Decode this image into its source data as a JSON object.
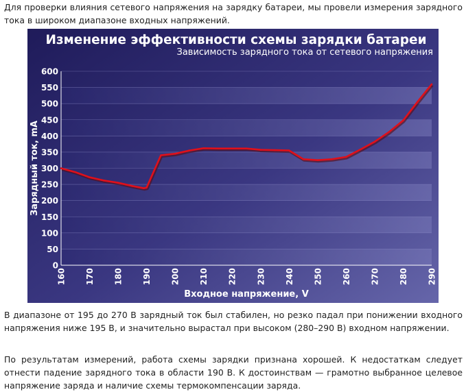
{
  "intro_text": "Для проверки влияния сетевого напряжения на зарядку батареи, мы провели измерения зарядного тока в широком диапазоне входных напряжений.",
  "result_text": "В диапазоне от 195 до 270 В зарядный ток был стабилен, но резко падал при понижении входного напряжения ниже 195 В, и значительно вырастал при высоком (280–290 В) входном напряжении.",
  "conclusion_text": "По результатам измерений, работа схемы зарядки признана хорошей. К недостаткам следует отнести падение зарядного тока в области 190 В. К достоинствам — грамотно выбранное целевое напряжение заряда и наличие схемы термокомпенсации заряда.",
  "colors": {
    "background_top": "#1f1b5a",
    "background_bottom": "#5a5a9e",
    "line": "#e0101a",
    "text": "#ffffff"
  },
  "chart_data": {
    "type": "line",
    "title": "Изменение эффективности схемы зарядки батареи",
    "subtitle": "Зависимость зарядного тока от сетевого напряжения",
    "xlabel": "Входное напряжение, V",
    "ylabel": "Зарядный ток, mA",
    "xlim": [
      160,
      290
    ],
    "ylim": [
      0,
      600
    ],
    "xticks": [
      "160",
      "170",
      "180",
      "190",
      "200",
      "210",
      "220",
      "230",
      "240",
      "250",
      "260",
      "270",
      "280",
      "290"
    ],
    "yticks": [
      "0",
      "50",
      "100",
      "150",
      "200",
      "250",
      "300",
      "350",
      "400",
      "450",
      "500",
      "550",
      "600"
    ],
    "grid": "horizontal bands",
    "x": [
      160,
      165,
      170,
      175,
      180,
      185,
      189,
      190,
      195,
      200,
      205,
      210,
      215,
      220,
      225,
      230,
      235,
      240,
      245,
      250,
      255,
      260,
      265,
      270,
      275,
      280,
      285,
      290
    ],
    "y": [
      300,
      288,
      272,
      262,
      255,
      245,
      238,
      240,
      340,
      345,
      355,
      362,
      361,
      361,
      361,
      357,
      356,
      355,
      328,
      325,
      328,
      335,
      358,
      382,
      412,
      448,
      505,
      560
    ]
  }
}
